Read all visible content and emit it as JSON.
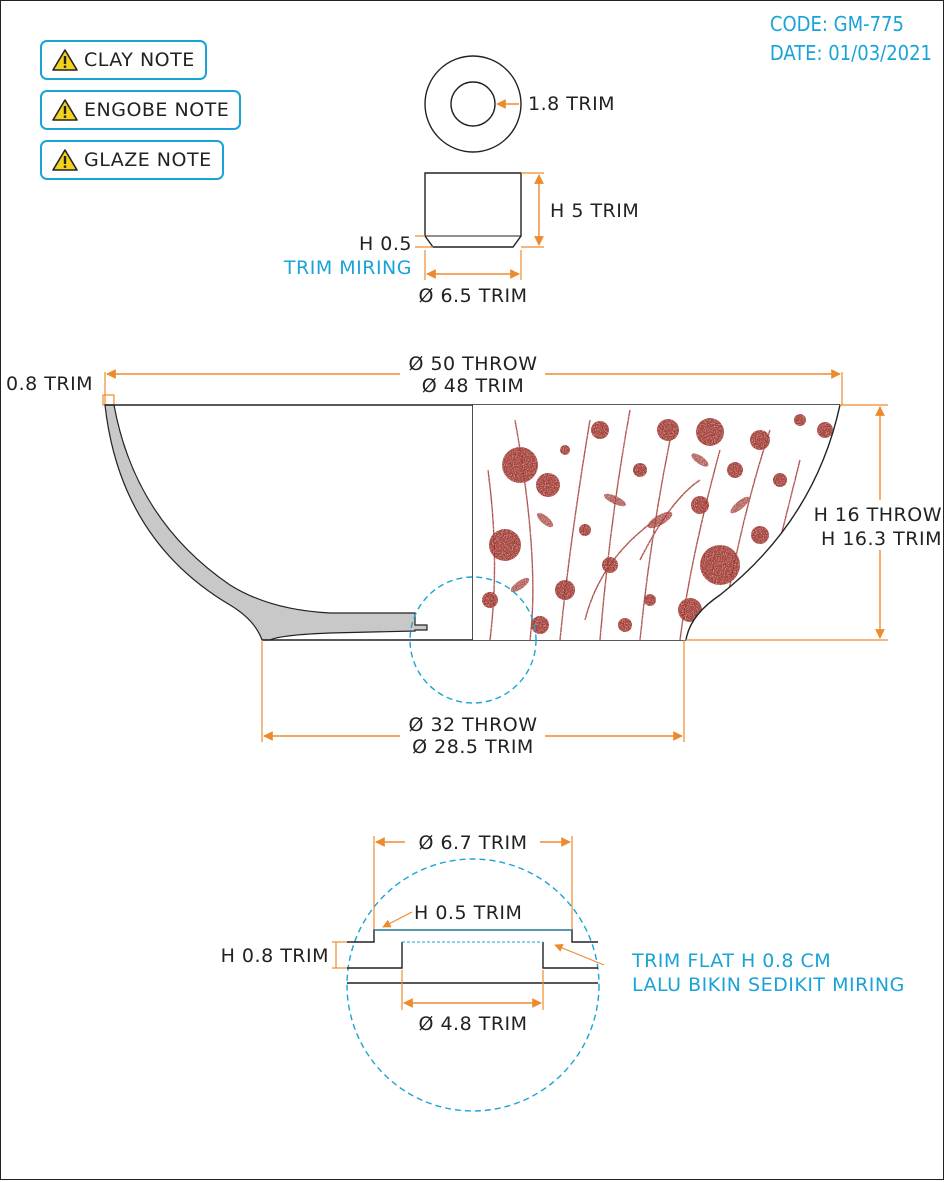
{
  "header": {
    "code": "CODE: GM-775",
    "date": "DATE: 01/03/2021"
  },
  "notes": [
    {
      "label": "CLAY NOTE",
      "icon": "warning-icon"
    },
    {
      "label": "ENGOBE NOTE",
      "icon": "warning-icon"
    },
    {
      "label": "GLAZE NOTE",
      "icon": "warning-icon"
    }
  ],
  "colors": {
    "accent": "#1aa3d6",
    "dimension": "#ee8a2e",
    "section_fill": "#c8c8c8",
    "pattern": "#9a2a22"
  },
  "foot_detail": {
    "ring_label": "1.8 TRIM",
    "height_label": "H 5 TRIM",
    "bevel_height_label": "H 0.5",
    "bevel_note": "TRIM MIRING",
    "diameter_label": "Ø 6.5 TRIM"
  },
  "bowl": {
    "top_throw": "Ø 50 THROW",
    "top_trim": "Ø 48 TRIM",
    "wall_label": "0.8 TRIM",
    "height_throw": "H 16 THROW",
    "height_trim": "H 16.3 TRIM",
    "base_throw": "Ø 32 THROW",
    "base_trim": "Ø 28.5 TRIM"
  },
  "base_detail": {
    "outer_diameter": "Ø 6.7 TRIM",
    "step_height": "H 0.5 TRIM",
    "flat_height": "H 0.8 TRIM",
    "inner_diameter": "Ø 4.8 TRIM",
    "note_line1": "TRIM FLAT H 0.8 CM",
    "note_line2": "LALU BIKIN SEDIKIT MIRING"
  }
}
